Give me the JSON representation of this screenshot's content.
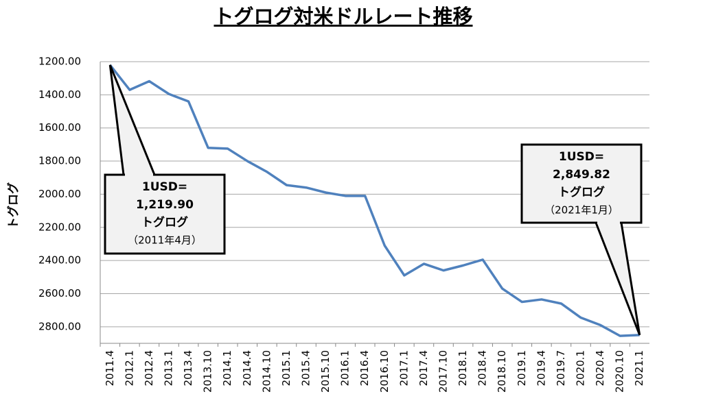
{
  "chart_data": {
    "type": "line",
    "title": "トグログ対米ドルレート推移",
    "y_label": "トグログ",
    "categories": [
      "2011.4",
      "2012.1",
      "2012.4",
      "2013.1",
      "2013.4",
      "2013.10",
      "2014.1",
      "2014.4",
      "2014.10",
      "2015.1",
      "2015.4",
      "2015.10",
      "2016.1",
      "2016.4",
      "2016.10",
      "2017.1",
      "2017.4",
      "2017.10",
      "2018.1",
      "2018.4",
      "2018.10",
      "2019.1",
      "2019.4",
      "2019.7",
      "2020.1",
      "2020.4",
      "2020.10",
      "2021.1"
    ],
    "series": [
      {
        "name": "トグログ",
        "color": "#4f81bd",
        "values": [
          1219.9,
          1370,
          1318,
          1395,
          1440,
          1720,
          1725,
          1800,
          1865,
          1945,
          1960,
          1990,
          2010,
          2010,
          2310,
          2490,
          2420,
          2460,
          2430,
          2395,
          2570,
          2650,
          2635,
          2660,
          2745,
          2790,
          2855,
          2849.82
        ]
      }
    ],
    "ylim": [
      1200,
      2900
    ],
    "inverted": true,
    "yticks": [
      {
        "value": 1200,
        "label": "1200.00"
      },
      {
        "value": 1400,
        "label": "1400.00"
      },
      {
        "value": 1600,
        "label": "1600.00"
      },
      {
        "value": 1800,
        "label": "1800.00"
      },
      {
        "value": 2000,
        "label": "2000.00"
      },
      {
        "value": 2200,
        "label": "2200.00"
      },
      {
        "value": 2400,
        "label": "2400.00"
      },
      {
        "value": 2600,
        "label": "2600.00"
      },
      {
        "value": 2800,
        "label": "2800.00"
      }
    ],
    "grid": true,
    "annotations": [
      {
        "lines": [
          "1USD=",
          "1,219.90",
          "トグログ",
          "（2011年4月）"
        ]
      },
      {
        "lines": [
          "1USD=",
          "2,849.82",
          "トグログ",
          "（2021年1月）"
        ]
      }
    ]
  }
}
